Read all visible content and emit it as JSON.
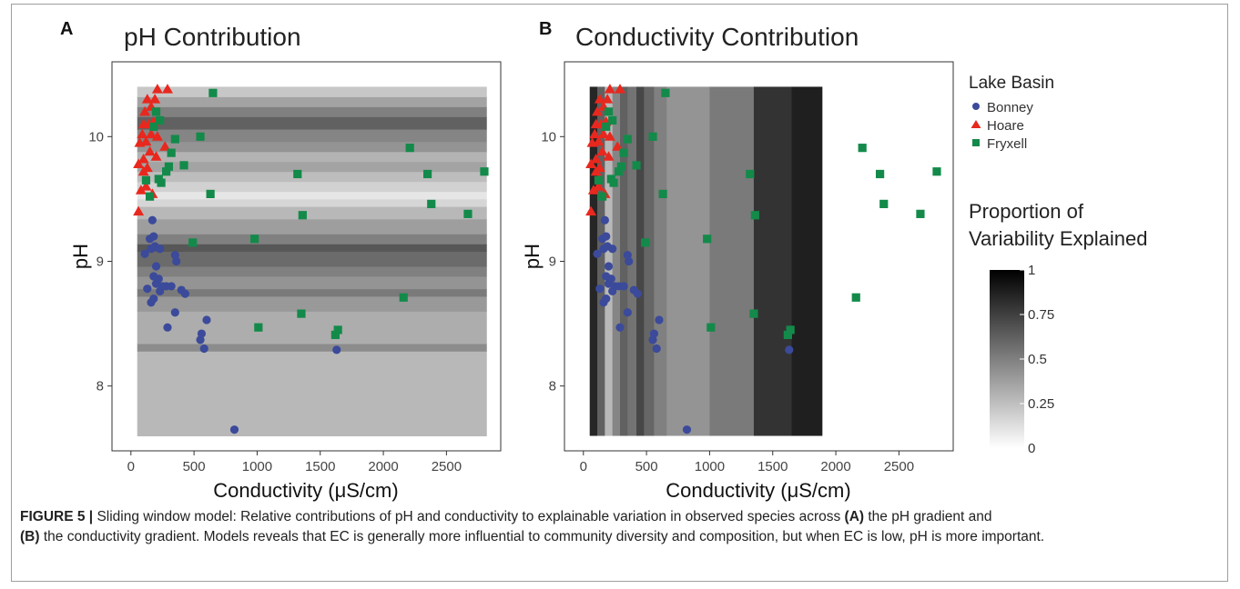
{
  "caption": {
    "label": "FIGURE 5 |",
    "part1": " Sliding window model: Relative contributions of pH and conductivity to explainable variation in observed species across ",
    "bold_a": "(A)",
    "part2": " the pH gradient and ",
    "bold_b": "(B)",
    "part3": " the conductivity gradient. Models reveals that EC is generally more influential to community diversity and composition, but when EC is low, pH is more important."
  },
  "legend": {
    "series_title": "Lake Basin",
    "series": [
      {
        "name": "Bonney",
        "color": "#3b4a9a",
        "shape": "circle"
      },
      {
        "name": "Hoare",
        "color": "#e8281e",
        "shape": "triangle"
      },
      {
        "name": "Fryxell",
        "color": "#138a4a",
        "shape": "square"
      }
    ],
    "gradient_title_line1": "Proportion of",
    "gradient_title_line2": "Variability Explained",
    "gradient_ticks": [
      "0",
      "0.25",
      "0.5",
      "0.75",
      "1"
    ]
  },
  "chart_data": [
    {
      "panel_label": "A",
      "type": "scatter",
      "title": "pH Contribution",
      "xlabel": "Conductivity (μS/cm)",
      "ylabel": "pH",
      "xlim": [
        -150,
        2930
      ],
      "ylim": [
        7.48,
        10.6
      ],
      "xticks": [
        0,
        500,
        1000,
        1500,
        2000,
        2500
      ],
      "yticks": [
        8,
        9,
        10
      ],
      "background": "horizontal pH-window contribution bands (0-1 grayscale)",
      "bands": [
        {
          "from": 7.6,
          "to": 8.28,
          "value": 0.28
        },
        {
          "from": 8.28,
          "to": 8.34,
          "value": 0.45
        },
        {
          "from": 8.34,
          "to": 8.6,
          "value": 0.32
        },
        {
          "from": 8.6,
          "to": 8.72,
          "value": 0.4
        },
        {
          "from": 8.72,
          "to": 8.78,
          "value": 0.52
        },
        {
          "from": 8.78,
          "to": 8.88,
          "value": 0.42
        },
        {
          "from": 8.88,
          "to": 8.96,
          "value": 0.5
        },
        {
          "from": 8.96,
          "to": 9.08,
          "value": 0.58
        },
        {
          "from": 9.08,
          "to": 9.14,
          "value": 0.66
        },
        {
          "from": 9.14,
          "to": 9.22,
          "value": 0.5
        },
        {
          "from": 9.22,
          "to": 9.34,
          "value": 0.38
        },
        {
          "from": 9.34,
          "to": 9.44,
          "value": 0.28
        },
        {
          "from": 9.44,
          "to": 9.5,
          "value": 0.16
        },
        {
          "from": 9.5,
          "to": 9.56,
          "value": 0.1
        },
        {
          "from": 9.56,
          "to": 9.64,
          "value": 0.18
        },
        {
          "from": 9.64,
          "to": 9.72,
          "value": 0.26
        },
        {
          "from": 9.72,
          "to": 9.8,
          "value": 0.36
        },
        {
          "from": 9.8,
          "to": 9.88,
          "value": 0.3
        },
        {
          "from": 9.88,
          "to": 9.96,
          "value": 0.42
        },
        {
          "from": 9.96,
          "to": 10.06,
          "value": 0.48
        },
        {
          "from": 10.06,
          "to": 10.16,
          "value": 0.62
        },
        {
          "from": 10.16,
          "to": 10.24,
          "value": 0.5
        },
        {
          "from": 10.24,
          "to": 10.32,
          "value": 0.36
        },
        {
          "from": 10.32,
          "to": 10.4,
          "value": 0.22
        }
      ]
    },
    {
      "panel_label": "B",
      "type": "scatter",
      "title": "Conductivity Contribution",
      "xlabel": "Conductivity (μS/cm)",
      "ylabel": "pH",
      "xlim": [
        -150,
        2930
      ],
      "ylim": [
        7.48,
        10.6
      ],
      "xticks": [
        0,
        500,
        1000,
        1500,
        2000,
        2500
      ],
      "yticks": [
        8,
        9,
        10
      ],
      "background": "vertical conductivity-window contribution bands (0-1 grayscale)",
      "bands": [
        {
          "from": 50,
          "to": 110,
          "value": 0.85
        },
        {
          "from": 110,
          "to": 170,
          "value": 0.62
        },
        {
          "from": 170,
          "to": 230,
          "value": 0.28
        },
        {
          "from": 230,
          "to": 290,
          "value": 0.48
        },
        {
          "from": 290,
          "to": 350,
          "value": 0.62
        },
        {
          "from": 350,
          "to": 420,
          "value": 0.55
        },
        {
          "from": 420,
          "to": 480,
          "value": 0.72
        },
        {
          "from": 480,
          "to": 560,
          "value": 0.6
        },
        {
          "from": 560,
          "to": 660,
          "value": 0.5
        },
        {
          "from": 660,
          "to": 1000,
          "value": 0.42
        },
        {
          "from": 1000,
          "to": 1350,
          "value": 0.52
        },
        {
          "from": 1350,
          "to": 1650,
          "value": 0.8
        },
        {
          "from": 1650,
          "to": 1890,
          "value": 0.88
        }
      ]
    }
  ],
  "points": {
    "Bonney": [
      [
        820,
        7.65
      ],
      [
        1630,
        8.29
      ],
      [
        580,
        8.3
      ],
      [
        550,
        8.37
      ],
      [
        560,
        8.42
      ],
      [
        600,
        8.53
      ],
      [
        290,
        8.47
      ],
      [
        350,
        8.59
      ],
      [
        160,
        8.67
      ],
      [
        180,
        8.7
      ],
      [
        230,
        8.76
      ],
      [
        130,
        8.78
      ],
      [
        250,
        8.8
      ],
      [
        280,
        8.8
      ],
      [
        320,
        8.8
      ],
      [
        200,
        8.82
      ],
      [
        400,
        8.77
      ],
      [
        430,
        8.74
      ],
      [
        180,
        8.88
      ],
      [
        220,
        8.86
      ],
      [
        200,
        8.96
      ],
      [
        360,
        9.0
      ],
      [
        350,
        9.05
      ],
      [
        110,
        9.06
      ],
      [
        160,
        9.1
      ],
      [
        190,
        9.12
      ],
      [
        230,
        9.1
      ],
      [
        150,
        9.18
      ],
      [
        180,
        9.2
      ],
      [
        170,
        9.33
      ]
    ],
    "Hoare": [
      [
        60,
        9.4
      ],
      [
        80,
        9.57
      ],
      [
        120,
        9.6
      ],
      [
        170,
        9.54
      ],
      [
        100,
        9.72
      ],
      [
        60,
        9.78
      ],
      [
        130,
        9.75
      ],
      [
        100,
        9.82
      ],
      [
        150,
        9.88
      ],
      [
        200,
        9.84
      ],
      [
        70,
        9.95
      ],
      [
        120,
        9.96
      ],
      [
        90,
        10.02
      ],
      [
        160,
        10.02
      ],
      [
        210,
        10.0
      ],
      [
        100,
        10.1
      ],
      [
        140,
        10.1
      ],
      [
        180,
        10.12
      ],
      [
        110,
        10.2
      ],
      [
        160,
        10.24
      ],
      [
        190,
        10.3
      ],
      [
        130,
        10.3
      ],
      [
        210,
        10.38
      ],
      [
        290,
        10.38
      ],
      [
        270,
        9.92
      ]
    ],
    "Fryxell": [
      [
        650,
        10.35
      ],
      [
        200,
        10.2
      ],
      [
        230,
        10.13
      ],
      [
        180,
        10.08
      ],
      [
        550,
        10.0
      ],
      [
        350,
        9.98
      ],
      [
        320,
        9.87
      ],
      [
        2210,
        9.91
      ],
      [
        420,
        9.77
      ],
      [
        300,
        9.76
      ],
      [
        280,
        9.72
      ],
      [
        1320,
        9.7
      ],
      [
        2350,
        9.7
      ],
      [
        2800,
        9.72
      ],
      [
        120,
        9.65
      ],
      [
        220,
        9.66
      ],
      [
        240,
        9.63
      ],
      [
        150,
        9.52
      ],
      [
        630,
        9.54
      ],
      [
        2380,
        9.46
      ],
      [
        1360,
        9.37
      ],
      [
        2670,
        9.38
      ],
      [
        980,
        9.18
      ],
      [
        490,
        9.15
      ],
      [
        2160,
        8.71
      ],
      [
        1350,
        8.58
      ],
      [
        1010,
        8.47
      ],
      [
        1640,
        8.45
      ],
      [
        1620,
        8.41
      ]
    ]
  }
}
